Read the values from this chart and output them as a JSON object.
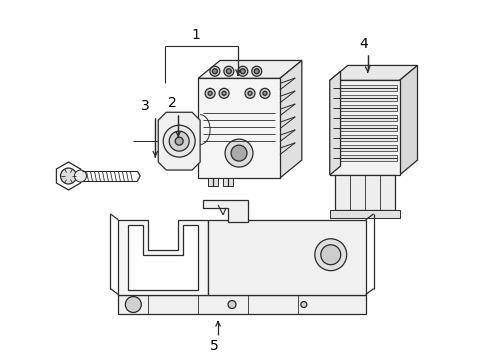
{
  "background_color": "#ffffff",
  "line_color": "#2a2a2a",
  "label_color": "#000000",
  "figsize": [
    4.89,
    3.6
  ],
  "dpi": 100,
  "label_fontsize": 10
}
